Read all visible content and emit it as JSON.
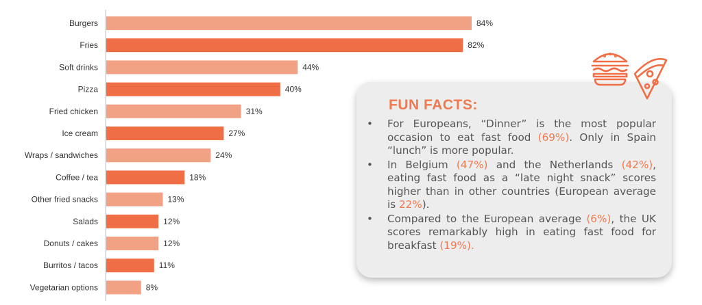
{
  "chart_data": {
    "type": "bar",
    "orientation": "horizontal",
    "categories": [
      "Burgers",
      "Fries",
      "Soft drinks",
      "Pizza",
      "Fried chicken",
      "Ice cream",
      "Wraps / sandwiches",
      "Coffee / tea",
      "Other fried snacks",
      "Salads",
      "Donuts / cakes",
      "Burritos / tacos",
      "Vegetarian options"
    ],
    "values": [
      84,
      82,
      44,
      40,
      31,
      27,
      24,
      18,
      13,
      12,
      12,
      11,
      8
    ],
    "value_labels": [
      "84%",
      "82%",
      "44%",
      "40%",
      "31%",
      "27%",
      "24%",
      "18%",
      "13%",
      "12%",
      "12%",
      "11%",
      "8%"
    ],
    "unit": "%",
    "colors": [
      "#f2a284",
      "#ef6e45"
    ],
    "xlim": [
      0,
      100
    ],
    "grid": false,
    "legend": "none",
    "title": "",
    "xlabel": "",
    "ylabel": ""
  },
  "facts": {
    "title": "FUN FACTS:",
    "bullet": "•",
    "items": [
      [
        {
          "t": "For Europeans, “Dinner” is the most popular occasion to eat fast food "
        },
        {
          "t": "(69%)",
          "hl": true
        },
        {
          "t": ". Only in Spain “lunch” is more popular."
        }
      ],
      [
        {
          "t": "In Belgium "
        },
        {
          "t": "(47%)",
          "hl": true
        },
        {
          "t": " and the Netherlands "
        },
        {
          "t": "(42%)",
          "hl": true
        },
        {
          "t": ", eating fast food as a “late night snack” scores higher than in other countries (European average is "
        },
        {
          "t": "22%",
          "hl": true
        },
        {
          "t": ")."
        }
      ],
      [
        {
          "t": "Compared to the European average "
        },
        {
          "t": "(6%)",
          "hl": true
        },
        {
          "t": ", the UK scores remarkably high in eating fast food for breakfast "
        },
        {
          "t": "(19%).",
          "hl": true
        }
      ]
    ]
  },
  "icons": [
    "burger-icon",
    "pizza-slice-icon"
  ],
  "accent_color": "#f07a4f"
}
